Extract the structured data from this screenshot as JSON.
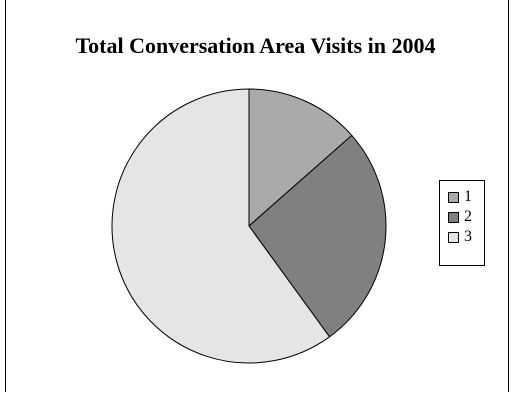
{
  "chart_data": {
    "type": "pie",
    "title": "Total Conversation Area Visits in 2004",
    "categories": [
      "1",
      "2",
      "3"
    ],
    "values": [
      13.5,
      26.5,
      60
    ],
    "colors": [
      "#aaaaaa",
      "#808080",
      "#e5e5e5"
    ],
    "legend_position": "right"
  }
}
